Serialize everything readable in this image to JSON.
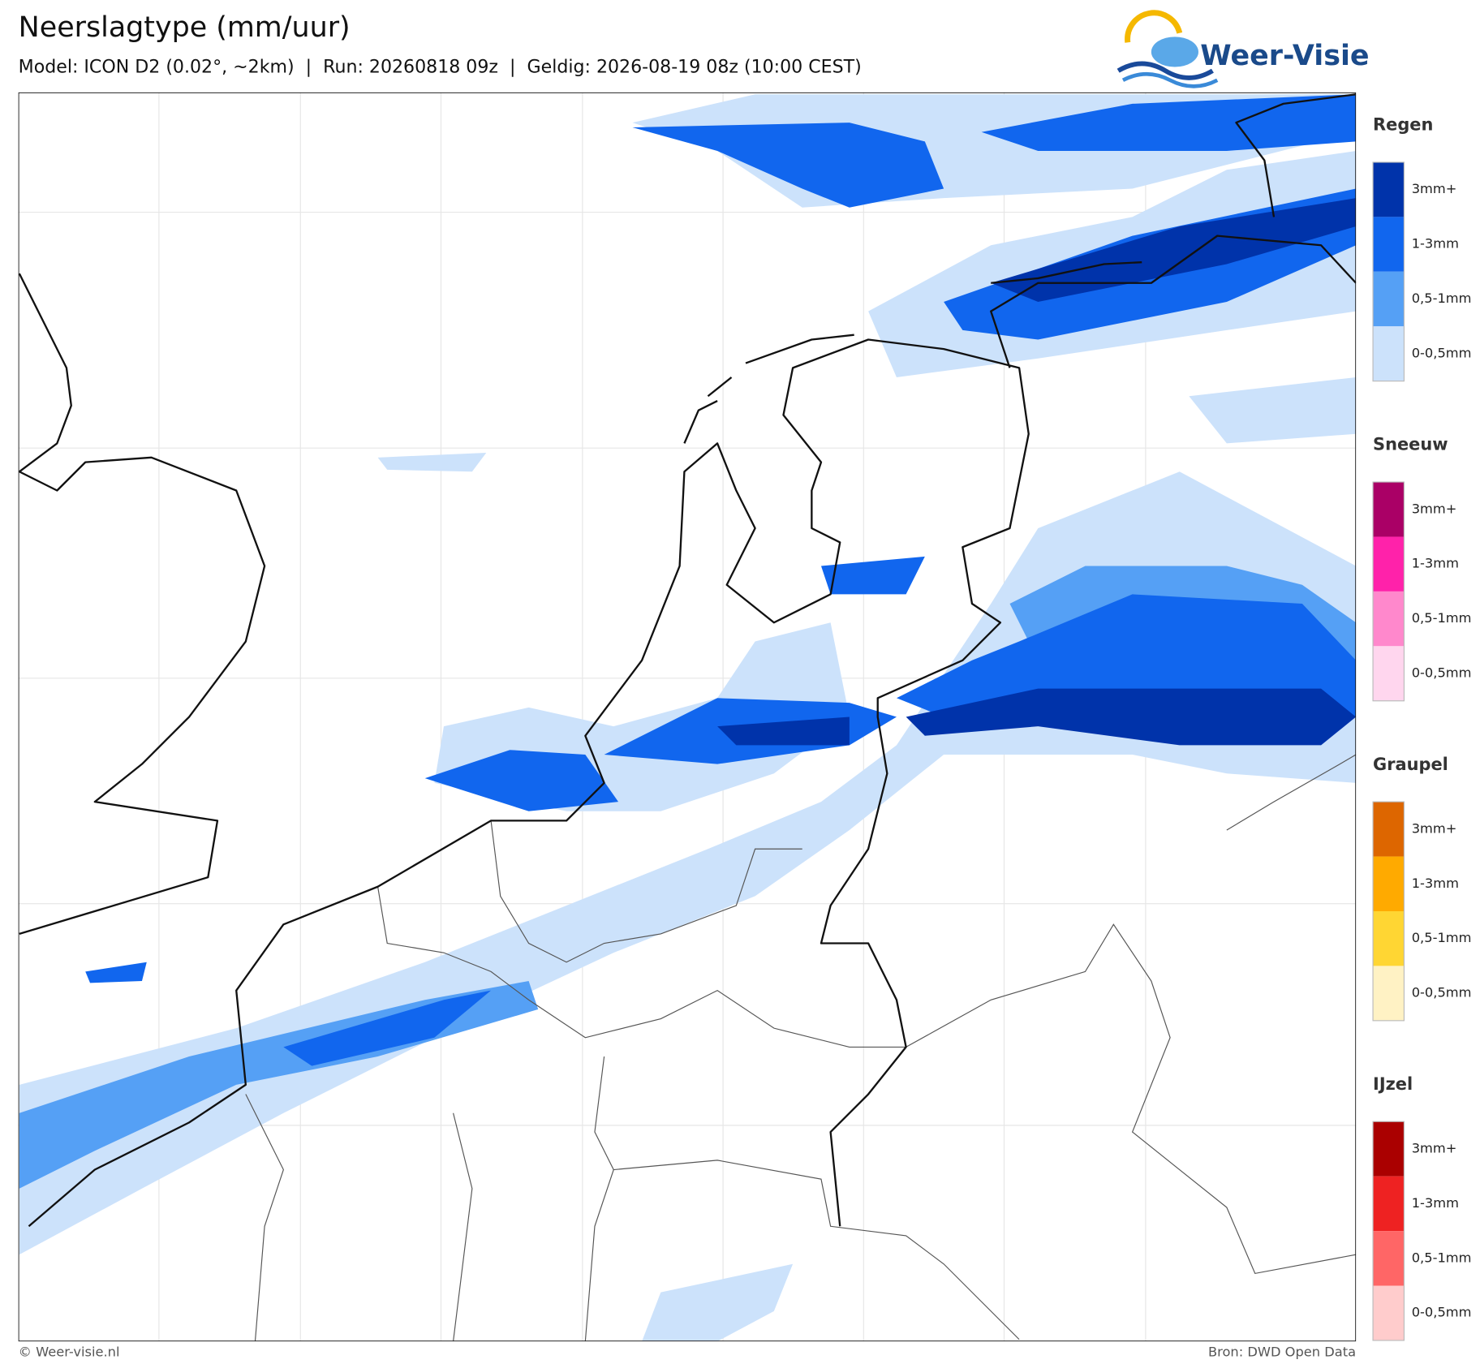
{
  "header": {
    "title": "Neerslagtype (mm/uur)",
    "subtitle": "Model: ICON D2 (0.02°, ~2km)  |  Run: 20260818 09z  |  Geldig: 2026-08-19 08z (10:00 CEST)"
  },
  "logo": "Weer-Visie",
  "legend": [
    {
      "title": "Regen",
      "items": [
        {
          "label": "3mm+",
          "color": "#0033aa"
        },
        {
          "label": "1-3mm",
          "color": "#1166ee"
        },
        {
          "label": "0,5-1mm",
          "color": "#55a0f5"
        },
        {
          "label": "0-0,5mm",
          "color": "#cce2fb"
        }
      ]
    },
    {
      "title": "Sneeuw",
      "items": [
        {
          "label": "3mm+",
          "color": "#aa0066"
        },
        {
          "label": "1-3mm",
          "color": "#ff22aa"
        },
        {
          "label": "0,5-1mm",
          "color": "#ff88cc"
        },
        {
          "label": "0-0,5mm",
          "color": "#ffd6ee"
        }
      ]
    },
    {
      "title": "Graupel",
      "items": [
        {
          "label": "3mm+",
          "color": "#dd6600"
        },
        {
          "label": "1-3mm",
          "color": "#ffaa00"
        },
        {
          "label": "0,5-1mm",
          "color": "#ffd633"
        },
        {
          "label": "0-0,5mm",
          "color": "#fff2c4"
        }
      ]
    },
    {
      "title": "IJzel",
      "items": [
        {
          "label": "3mm+",
          "color": "#aa0000"
        },
        {
          "label": "1-3mm",
          "color": "#ee2222"
        },
        {
          "label": "0,5-1mm",
          "color": "#ff6666"
        },
        {
          "label": "0-0,5mm",
          "color": "#ffcccc"
        }
      ]
    }
  ],
  "footer": {
    "left": "© Weer-visie.nl",
    "right": "Bron: DWD Open Data"
  }
}
